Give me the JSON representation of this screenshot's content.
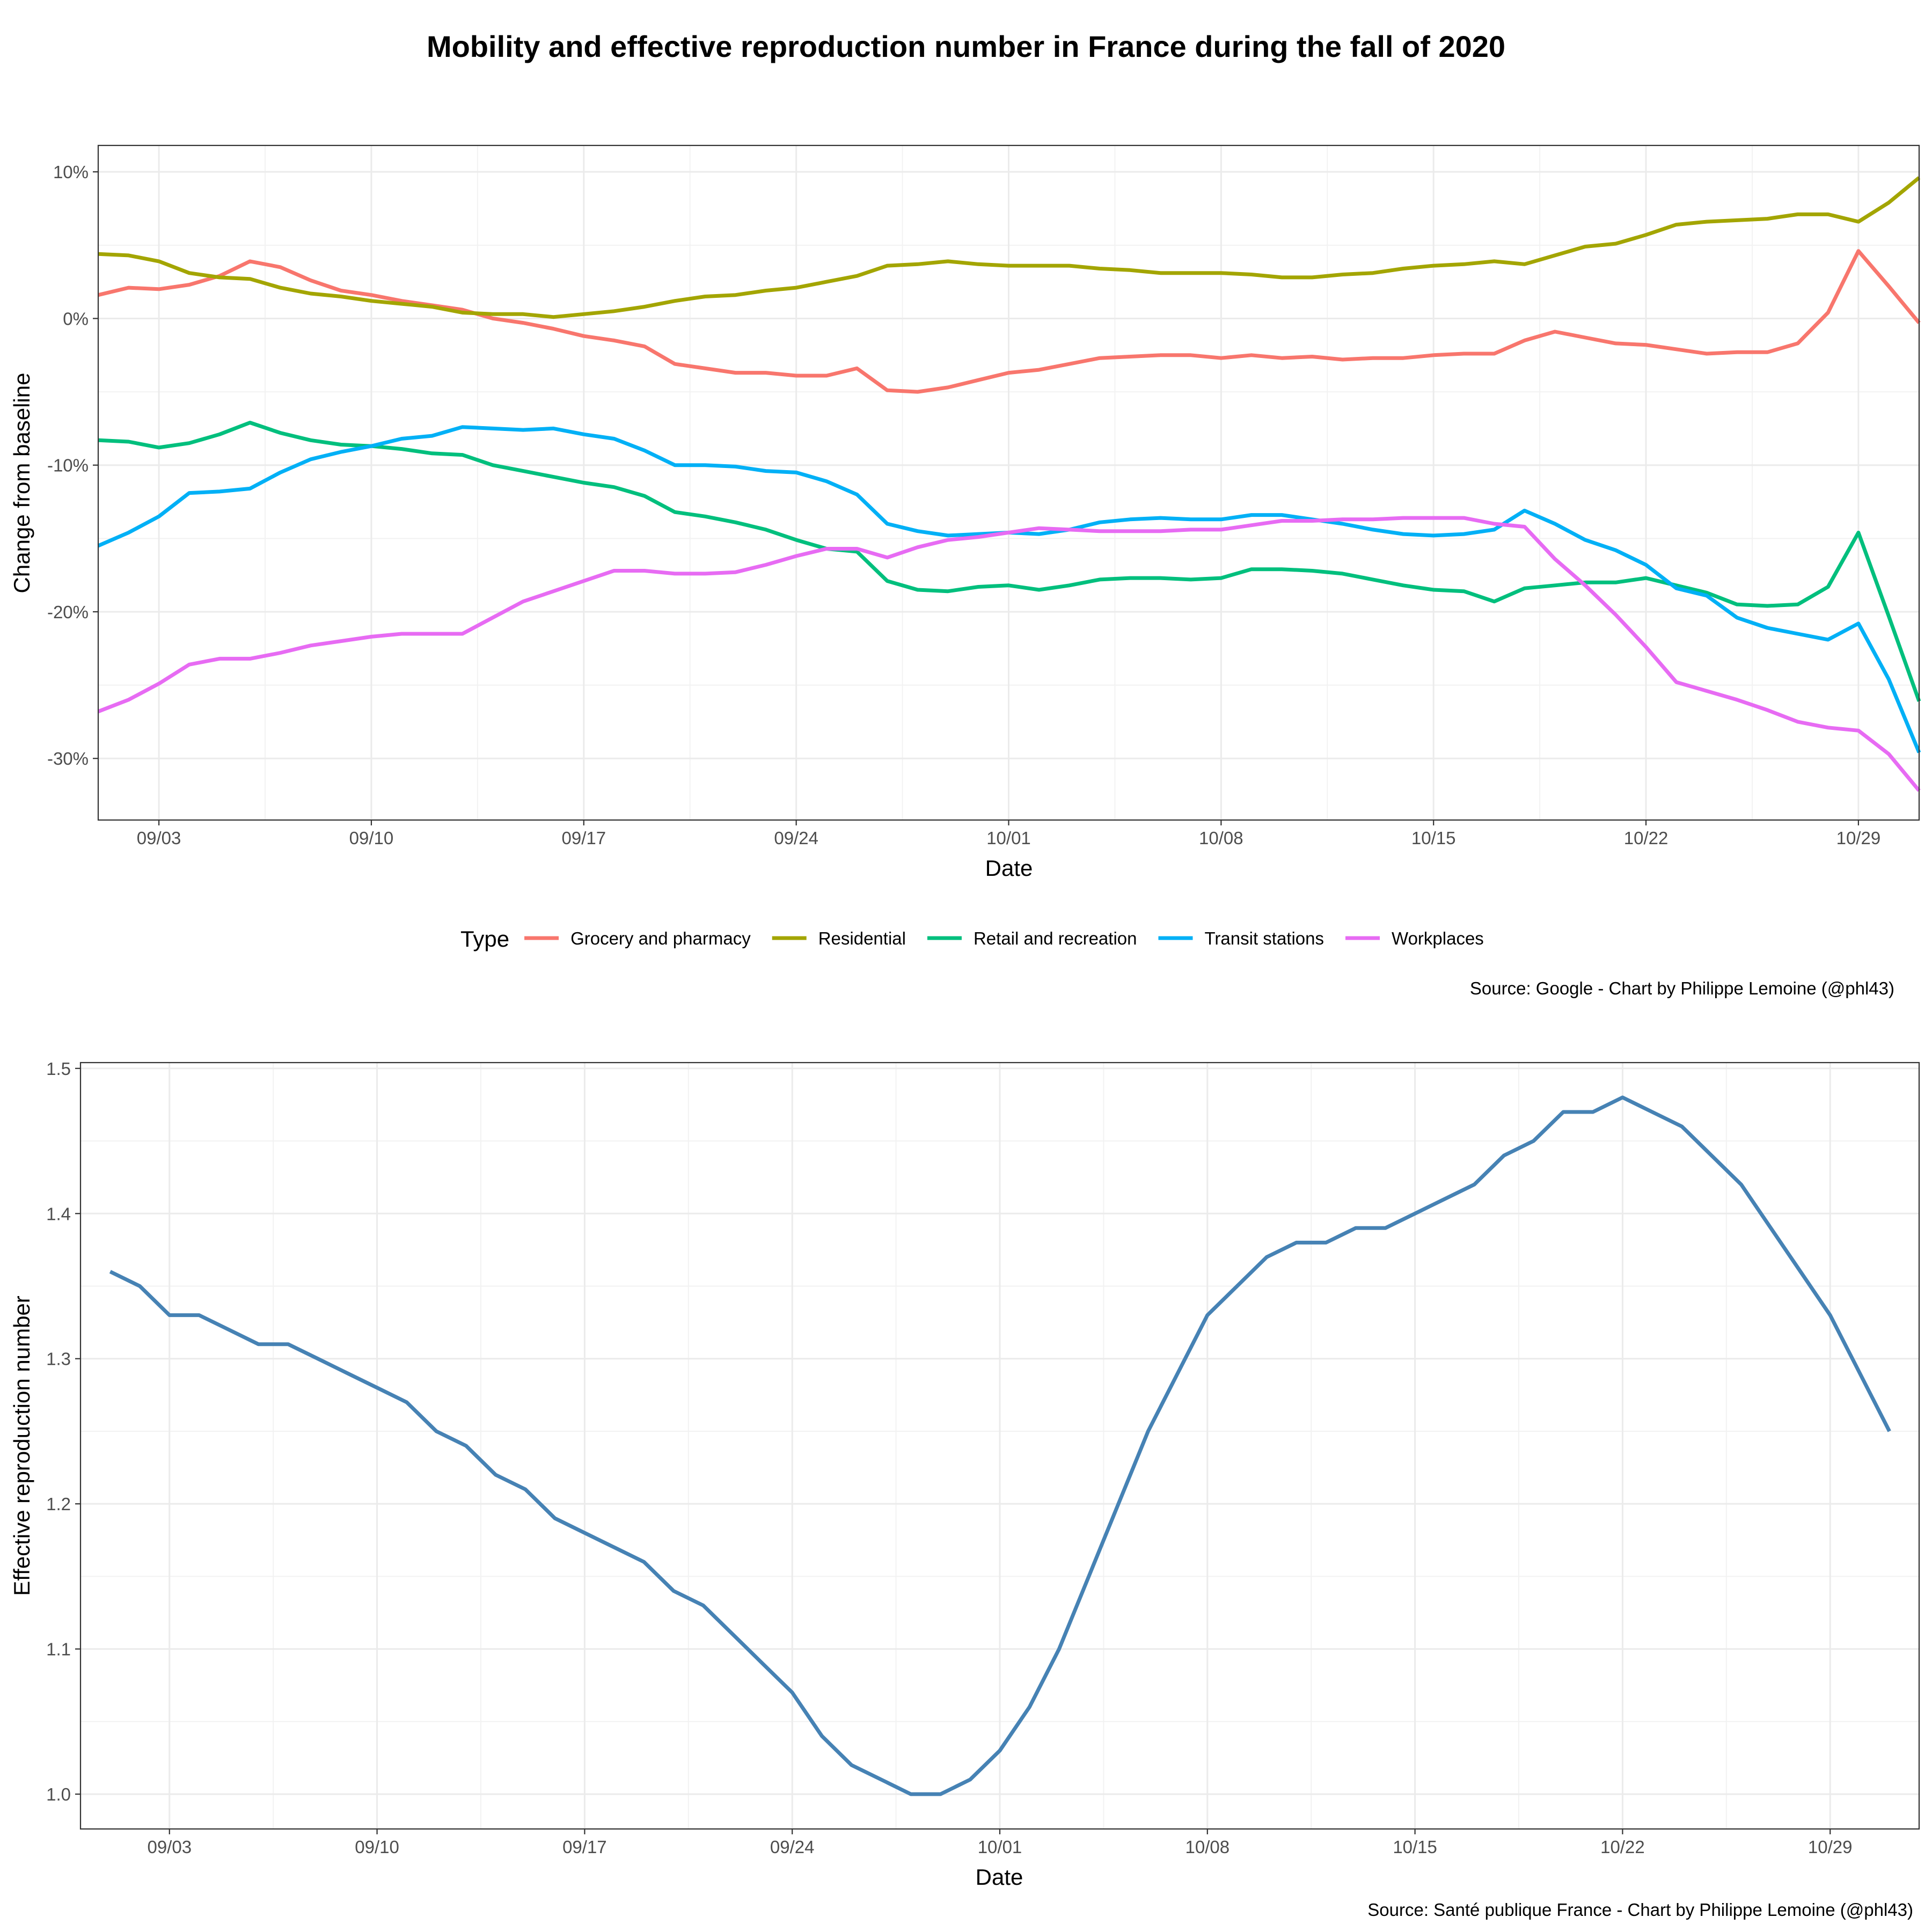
{
  "title": "Mobility and effective reproduction number in France during the fall of 2020",
  "chart_data": [
    {
      "type": "line",
      "xlabel": "Date",
      "ylabel": "Change from baseline",
      "x_ticks": [
        "09/03",
        "09/10",
        "09/17",
        "09/24",
        "10/01",
        "10/08",
        "10/15",
        "10/22",
        "10/29"
      ],
      "y_ticks": [
        "10%",
        "0%",
        "-10%",
        "-20%",
        "-30%"
      ],
      "y_tick_values": [
        10,
        0,
        -10,
        -20,
        -30
      ],
      "ylim": [
        -34.2,
        11.8
      ],
      "x_start": "2020-09-01",
      "x_end": "2020-10-31",
      "legend_title": "Type",
      "legend_position": "bottom",
      "caption": "Source: Google - Chart by Philippe Lemoine (@phl43)",
      "dates": [
        "2020-09-01",
        "2020-09-02",
        "2020-09-03",
        "2020-09-04",
        "2020-09-05",
        "2020-09-06",
        "2020-09-07",
        "2020-09-08",
        "2020-09-09",
        "2020-09-10",
        "2020-09-11",
        "2020-09-12",
        "2020-09-13",
        "2020-09-14",
        "2020-09-15",
        "2020-09-16",
        "2020-09-17",
        "2020-09-18",
        "2020-09-19",
        "2020-09-20",
        "2020-09-21",
        "2020-09-22",
        "2020-09-23",
        "2020-09-24",
        "2020-09-25",
        "2020-09-26",
        "2020-09-27",
        "2020-09-28",
        "2020-09-29",
        "2020-09-30",
        "2020-10-01",
        "2020-10-02",
        "2020-10-03",
        "2020-10-04",
        "2020-10-05",
        "2020-10-06",
        "2020-10-07",
        "2020-10-08",
        "2020-10-09",
        "2020-10-10",
        "2020-10-11",
        "2020-10-12",
        "2020-10-13",
        "2020-10-14",
        "2020-10-15",
        "2020-10-16",
        "2020-10-17",
        "2020-10-18",
        "2020-10-19",
        "2020-10-20",
        "2020-10-21",
        "2020-10-22",
        "2020-10-23",
        "2020-10-24",
        "2020-10-25",
        "2020-10-26",
        "2020-10-27",
        "2020-10-28",
        "2020-10-29",
        "2020-10-30",
        "2020-10-31"
      ],
      "series": [
        {
          "name": "Grocery and pharmacy",
          "color": "#F8766D",
          "values": [
            1.6,
            2.1,
            2.0,
            2.3,
            2.9,
            3.9,
            3.5,
            2.6,
            1.9,
            1.6,
            1.2,
            0.9,
            0.6,
            0.0,
            -0.3,
            -0.7,
            -1.2,
            -1.5,
            -1.9,
            -3.1,
            -3.4,
            -3.7,
            -3.7,
            -3.9,
            -3.9,
            -3.4,
            -4.9,
            -5.0,
            -4.7,
            -4.2,
            -3.7,
            -3.5,
            -3.1,
            -2.7,
            -2.6,
            -2.5,
            -2.5,
            -2.7,
            -2.5,
            -2.7,
            -2.6,
            -2.8,
            -2.7,
            -2.7,
            -2.5,
            -2.4,
            -2.4,
            -1.5,
            -0.9,
            -1.3,
            -1.7,
            -1.8,
            -2.1,
            -2.4,
            -2.3,
            -2.3,
            -1.7,
            0.4,
            4.6,
            2.2,
            -0.3
          ]
        },
        {
          "name": "Residential",
          "color": "#A3A500",
          "values": [
            4.4,
            4.3,
            3.9,
            3.1,
            2.8,
            2.7,
            2.1,
            1.7,
            1.5,
            1.2,
            1.0,
            0.8,
            0.4,
            0.3,
            0.3,
            0.1,
            0.3,
            0.5,
            0.8,
            1.2,
            1.5,
            1.6,
            1.9,
            2.1,
            2.5,
            2.9,
            3.6,
            3.7,
            3.9,
            3.7,
            3.6,
            3.6,
            3.6,
            3.4,
            3.3,
            3.1,
            3.1,
            3.1,
            3.0,
            2.8,
            2.8,
            3.0,
            3.1,
            3.4,
            3.6,
            3.7,
            3.9,
            3.7,
            4.3,
            4.9,
            5.1,
            5.7,
            6.4,
            6.6,
            6.7,
            6.8,
            7.1,
            7.1,
            6.6,
            7.9,
            9.6
          ]
        },
        {
          "name": "Retail and recreation",
          "color": "#00BF7D",
          "values": [
            -8.3,
            -8.4,
            -8.8,
            -8.5,
            -7.9,
            -7.1,
            -7.8,
            -8.3,
            -8.6,
            -8.7,
            -8.9,
            -9.2,
            -9.3,
            -10.0,
            -10.4,
            -10.8,
            -11.2,
            -11.5,
            -12.1,
            -13.2,
            -13.5,
            -13.9,
            -14.4,
            -15.1,
            -15.7,
            -15.9,
            -17.9,
            -18.5,
            -18.6,
            -18.3,
            -18.2,
            -18.5,
            -18.2,
            -17.8,
            -17.7,
            -17.7,
            -17.8,
            -17.7,
            -17.1,
            -17.1,
            -17.2,
            -17.4,
            -17.8,
            -18.2,
            -18.5,
            -18.6,
            -19.3,
            -18.4,
            -18.2,
            -18.0,
            -18.0,
            -17.7,
            -18.2,
            -18.7,
            -19.5,
            -19.6,
            -19.5,
            -18.3,
            -14.6,
            -20.3,
            -26.1
          ]
        },
        {
          "name": "Transit stations",
          "color": "#00B0F6",
          "values": [
            -15.5,
            -14.6,
            -13.5,
            -11.9,
            -11.8,
            -11.6,
            -10.5,
            -9.6,
            -9.1,
            -8.7,
            -8.2,
            -8.0,
            -7.4,
            -7.5,
            -7.6,
            -7.5,
            -7.9,
            -8.2,
            -9.0,
            -10.0,
            -10.0,
            -10.1,
            -10.4,
            -10.5,
            -11.1,
            -12.0,
            -14.0,
            -14.5,
            -14.8,
            -14.7,
            -14.6,
            -14.7,
            -14.4,
            -13.9,
            -13.7,
            -13.6,
            -13.7,
            -13.7,
            -13.4,
            -13.4,
            -13.7,
            -14.0,
            -14.4,
            -14.7,
            -14.8,
            -14.7,
            -14.4,
            -13.1,
            -14.0,
            -15.1,
            -15.8,
            -16.8,
            -18.4,
            -18.9,
            -20.4,
            -21.1,
            -21.5,
            -21.9,
            -20.8,
            -24.6,
            -29.6
          ]
        },
        {
          "name": "Workplaces",
          "color": "#E76BF3",
          "values": [
            -26.8,
            -26.0,
            -24.9,
            -23.6,
            -23.2,
            -23.2,
            -22.8,
            -22.3,
            -22.0,
            -21.7,
            -21.5,
            -21.5,
            -21.5,
            -20.4,
            -19.3,
            -18.6,
            -17.9,
            -17.2,
            -17.2,
            -17.4,
            -17.4,
            -17.3,
            -16.8,
            -16.2,
            -15.7,
            -15.7,
            -16.3,
            -15.6,
            -15.1,
            -14.9,
            -14.6,
            -14.3,
            -14.4,
            -14.5,
            -14.5,
            -14.5,
            -14.4,
            -14.4,
            -14.1,
            -13.8,
            -13.8,
            -13.7,
            -13.7,
            -13.6,
            -13.6,
            -13.6,
            -14.0,
            -14.2,
            -16.4,
            -18.2,
            -20.2,
            -22.4,
            -24.8,
            -25.4,
            -26.0,
            -26.7,
            -27.5,
            -27.9,
            -28.1,
            -29.7,
            -32.2
          ]
        }
      ]
    },
    {
      "type": "line",
      "xlabel": "Date",
      "ylabel": "Effective reproduction number",
      "x_ticks": [
        "09/03",
        "09/10",
        "09/17",
        "09/24",
        "10/01",
        "10/08",
        "10/15",
        "10/22",
        "10/29"
      ],
      "y_ticks": [
        "1.5",
        "1.4",
        "1.3",
        "1.2",
        "1.1",
        "1.0"
      ],
      "y_tick_values": [
        1.5,
        1.4,
        1.3,
        1.2,
        1.1,
        1.0
      ],
      "ylim": [
        0.976,
        1.504
      ],
      "x_start": "2020-08-31",
      "x_end": "2020-11-01",
      "caption": "Source: Santé publique France - Chart by Philippe Lemoine (@phl43)",
      "dates": [
        "2020-09-01",
        "2020-09-02",
        "2020-09-03",
        "2020-09-04",
        "2020-09-05",
        "2020-09-06",
        "2020-09-07",
        "2020-09-08",
        "2020-09-09",
        "2020-09-10",
        "2020-09-11",
        "2020-09-12",
        "2020-09-13",
        "2020-09-14",
        "2020-09-15",
        "2020-09-16",
        "2020-09-17",
        "2020-09-18",
        "2020-09-19",
        "2020-09-20",
        "2020-09-21",
        "2020-09-22",
        "2020-09-23",
        "2020-09-24",
        "2020-09-25",
        "2020-09-26",
        "2020-09-27",
        "2020-09-28",
        "2020-09-29",
        "2020-09-30",
        "2020-10-01",
        "2020-10-02",
        "2020-10-03",
        "2020-10-04",
        "2020-10-05",
        "2020-10-06",
        "2020-10-07",
        "2020-10-08",
        "2020-10-09",
        "2020-10-10",
        "2020-10-11",
        "2020-10-12",
        "2020-10-13",
        "2020-10-14",
        "2020-10-15",
        "2020-10-16",
        "2020-10-17",
        "2020-10-18",
        "2020-10-19",
        "2020-10-20",
        "2020-10-21",
        "2020-10-22",
        "2020-10-23",
        "2020-10-24",
        "2020-10-25",
        "2020-10-26",
        "2020-10-27",
        "2020-10-28",
        "2020-10-29",
        "2020-10-30",
        "2020-10-31"
      ],
      "series": [
        {
          "name": "",
          "color": "#4682B4",
          "values": [
            1.36,
            1.35,
            1.33,
            1.33,
            1.32,
            1.31,
            1.31,
            1.3,
            1.29,
            1.28,
            1.27,
            1.25,
            1.24,
            1.22,
            1.21,
            1.19,
            1.18,
            1.17,
            1.16,
            1.14,
            1.13,
            1.11,
            1.09,
            1.07,
            1.04,
            1.02,
            1.01,
            1.0,
            1.0,
            1.01,
            1.03,
            1.06,
            1.1,
            1.15,
            1.2,
            1.25,
            1.29,
            1.33,
            1.35,
            1.37,
            1.38,
            1.38,
            1.39,
            1.39,
            1.4,
            1.41,
            1.42,
            1.44,
            1.45,
            1.47,
            1.47,
            1.48,
            1.47,
            1.46,
            1.44,
            1.42,
            1.39,
            1.36,
            1.33,
            1.29,
            1.25
          ]
        }
      ]
    }
  ]
}
